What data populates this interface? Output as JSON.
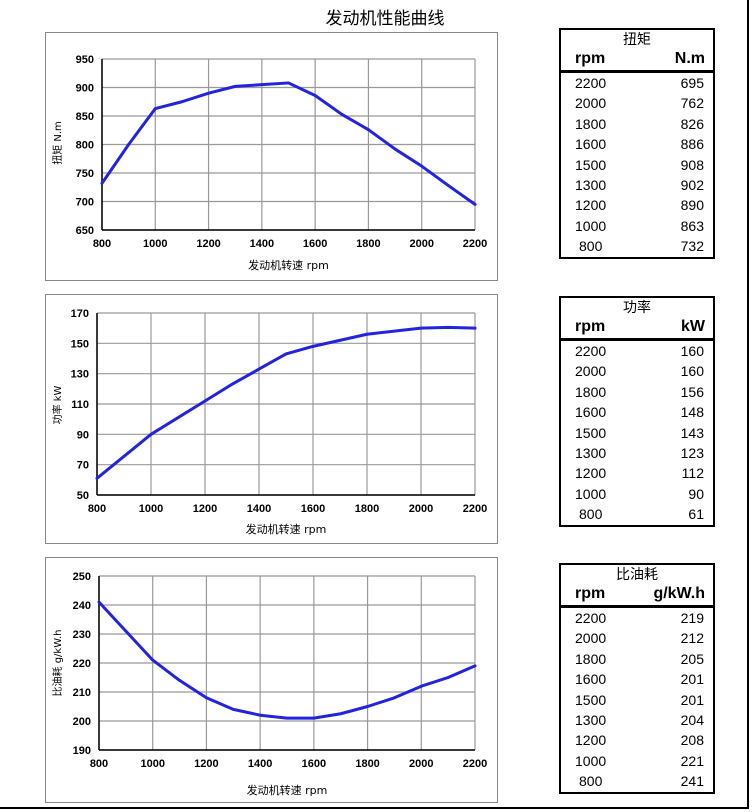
{
  "title": "发动机性能曲线",
  "colors": {
    "line": "#2323e0",
    "grid": "#999999",
    "axis": "#000000"
  },
  "chart_data": [
    {
      "type": "line",
      "xlabel": "发动机转速  rpm",
      "ylabel": "扭矩 N.m",
      "xlim": [
        800,
        2200
      ],
      "ylim": [
        650,
        950
      ],
      "xticks": [
        800,
        1000,
        1200,
        1400,
        1600,
        1800,
        2000,
        2200
      ],
      "yticks": [
        650,
        700,
        750,
        800,
        850,
        900,
        950
      ],
      "grid": true,
      "x": [
        800,
        900,
        1000,
        1100,
        1200,
        1300,
        1400,
        1500,
        1600,
        1700,
        1800,
        1900,
        2000,
        2100,
        2200
      ],
      "y": [
        732,
        800,
        863,
        875,
        890,
        902,
        905,
        908,
        886,
        853,
        826,
        792,
        762,
        728,
        695
      ]
    },
    {
      "type": "line",
      "xlabel": "发动机转速 rpm",
      "ylabel": "功率 kW",
      "xlim": [
        800,
        2200
      ],
      "ylim": [
        50,
        170
      ],
      "xticks": [
        800,
        1000,
        1200,
        1400,
        1600,
        1800,
        2000,
        2200
      ],
      "yticks": [
        50,
        70,
        90,
        110,
        130,
        150,
        170
      ],
      "grid": true,
      "x": [
        800,
        1000,
        1200,
        1300,
        1400,
        1500,
        1600,
        1800,
        2000,
        2100,
        2200
      ],
      "y": [
        61,
        90,
        112,
        123,
        133,
        143,
        148,
        156,
        160,
        160.5,
        160
      ]
    },
    {
      "type": "line",
      "xlabel": "发动机转速  rpm",
      "ylabel": "比油耗 g/kW.h",
      "xlim": [
        800,
        2200
      ],
      "ylim": [
        190,
        250
      ],
      "xticks": [
        800,
        1000,
        1200,
        1400,
        1600,
        1800,
        2000,
        2200
      ],
      "yticks": [
        190,
        200,
        210,
        220,
        230,
        240,
        250
      ],
      "grid": true,
      "x": [
        800,
        900,
        1000,
        1100,
        1200,
        1300,
        1400,
        1500,
        1600,
        1700,
        1800,
        1900,
        2000,
        2100,
        2200
      ],
      "y": [
        241,
        231,
        221,
        214,
        208,
        204,
        202,
        201,
        201,
        202.5,
        205,
        208,
        212,
        215,
        219
      ]
    }
  ],
  "tables": [
    {
      "title": "扭矩",
      "col0": "rpm",
      "col1": "N.m",
      "rows": [
        [
          "2200",
          "695"
        ],
        [
          "2000",
          "762"
        ],
        [
          "1800",
          "826"
        ],
        [
          "1600",
          "886"
        ],
        [
          "1500",
          "908"
        ],
        [
          "1300",
          "902"
        ],
        [
          "1200",
          "890"
        ],
        [
          "1000",
          "863"
        ],
        [
          "800",
          "732"
        ]
      ]
    },
    {
      "title": "功率",
      "col0": "rpm",
      "col1": "kW",
      "rows": [
        [
          "2200",
          "160"
        ],
        [
          "2000",
          "160"
        ],
        [
          "1800",
          "156"
        ],
        [
          "1600",
          "148"
        ],
        [
          "1500",
          "143"
        ],
        [
          "1300",
          "123"
        ],
        [
          "1200",
          "112"
        ],
        [
          "1000",
          "90"
        ],
        [
          "800",
          "61"
        ]
      ]
    },
    {
      "title": "比油耗",
      "col0": "rpm",
      "col1": "g/kW.h",
      "rows": [
        [
          "2200",
          "219"
        ],
        [
          "2000",
          "212"
        ],
        [
          "1800",
          "205"
        ],
        [
          "1600",
          "201"
        ],
        [
          "1500",
          "201"
        ],
        [
          "1300",
          "204"
        ],
        [
          "1200",
          "208"
        ],
        [
          "1000",
          "221"
        ],
        [
          "800",
          "241"
        ]
      ]
    }
  ]
}
